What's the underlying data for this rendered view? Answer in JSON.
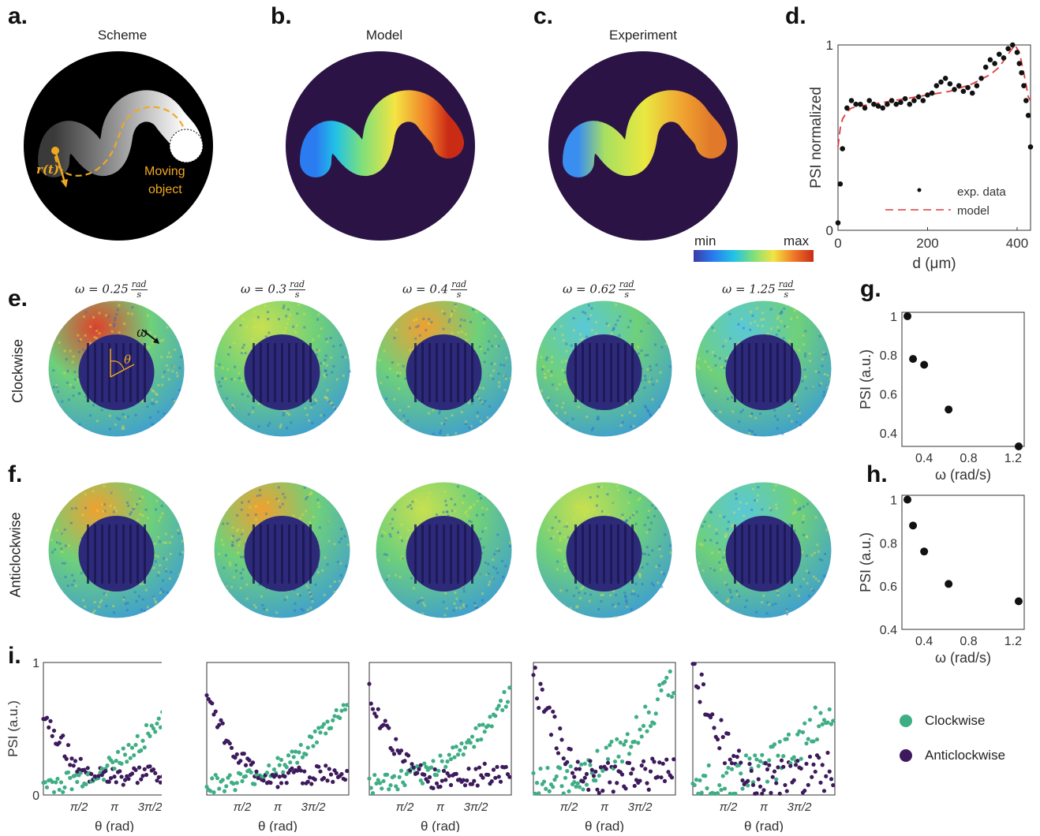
{
  "panel_letters": {
    "a": "a.",
    "b": "b.",
    "c": "c.",
    "d": "d.",
    "e": "e.",
    "f": "f.",
    "g": "g.",
    "h": "h.",
    "i": "i."
  },
  "titles": {
    "scheme": "Scheme",
    "model": "Model",
    "experiment": "Experiment"
  },
  "scheme": {
    "r_label": "r(t)",
    "moving_object": "Moving\nobject",
    "moving_line1": "Moving",
    "moving_line2": "object"
  },
  "colorbar": {
    "min": "min",
    "max": "max"
  },
  "omega_labels": [
    {
      "prefix": "ω = 0.25",
      "num": "rad",
      "den": "s"
    },
    {
      "prefix": "ω = 0.3",
      "num": "rad",
      "den": "s"
    },
    {
      "prefix": "ω = 0.4",
      "num": "rad",
      "den": "s"
    },
    {
      "prefix": "ω = 0.62",
      "num": "rad",
      "den": "s"
    },
    {
      "prefix": "ω = 1.25",
      "num": "rad",
      "den": "s"
    }
  ],
  "row_labels": {
    "clockwise": "Clockwise",
    "anticlockwise": "Anticlockwise"
  },
  "heatmap_annotations": {
    "omega": "ω",
    "theta": "θ"
  },
  "legend_i": {
    "clockwise": "Clockwise",
    "anticlockwise": "Anticlockwise",
    "clockwise_color": "#3fae85",
    "anticlockwise_color": "#3d1a5c"
  },
  "chart_data": [
    {
      "id": "d",
      "type": "scatter",
      "xlabel": "d (μm)",
      "ylabel": "PSI normalized",
      "xlim": [
        0,
        430
      ],
      "ylim": [
        0,
        1
      ],
      "xticks": [
        "0",
        "200",
        "400"
      ],
      "yticks": [
        "0",
        "1"
      ],
      "series": [
        {
          "name": "exp. data",
          "x": [
            0,
            5,
            10,
            20,
            30,
            40,
            50,
            60,
            70,
            80,
            90,
            100,
            110,
            120,
            130,
            140,
            150,
            160,
            170,
            180,
            190,
            200,
            210,
            220,
            230,
            240,
            250,
            260,
            270,
            280,
            290,
            300,
            310,
            320,
            330,
            340,
            350,
            360,
            370,
            380,
            390,
            400,
            405,
            410,
            415,
            420,
            425,
            430
          ],
          "y": [
            0.04,
            0.25,
            0.44,
            0.66,
            0.7,
            0.68,
            0.68,
            0.66,
            0.7,
            0.68,
            0.67,
            0.66,
            0.68,
            0.7,
            0.68,
            0.69,
            0.71,
            0.68,
            0.7,
            0.72,
            0.7,
            0.73,
            0.74,
            0.78,
            0.8,
            0.82,
            0.79,
            0.76,
            0.78,
            0.75,
            0.77,
            0.74,
            0.78,
            0.82,
            0.88,
            0.92,
            0.9,
            0.95,
            0.93,
            0.98,
            1.0,
            0.96,
            0.9,
            0.85,
            0.78,
            0.7,
            0.62,
            0.45
          ]
        },
        {
          "name": "model",
          "x": [
            0,
            5,
            10,
            20,
            30,
            50,
            100,
            150,
            200,
            250,
            300,
            340,
            360,
            380,
            395,
            405,
            415,
            425,
            430
          ],
          "y": [
            0.45,
            0.55,
            0.6,
            0.64,
            0.66,
            0.67,
            0.69,
            0.71,
            0.73,
            0.75,
            0.79,
            0.84,
            0.88,
            0.95,
            1.0,
            0.96,
            0.85,
            0.72,
            0.7
          ]
        }
      ],
      "legend": "bottom-right"
    },
    {
      "id": "g",
      "type": "scatter",
      "xlabel": "ω (rad/s)",
      "ylabel": "PSI (a.u.)",
      "xlim": [
        0.2,
        1.3
      ],
      "ylim": [
        0.33,
        1.02
      ],
      "xticks": [
        "0.4",
        "0.8",
        "1.2"
      ],
      "yticks": [
        "0.4",
        "0.6",
        "0.8",
        "1"
      ],
      "series": [
        {
          "x": [
            0.25,
            0.3,
            0.4,
            0.62,
            1.25
          ],
          "y": [
            1.0,
            0.78,
            0.75,
            0.52,
            0.33
          ]
        }
      ]
    },
    {
      "id": "h",
      "type": "scatter",
      "xlabel": "ω (rad/s)",
      "ylabel": "PSI (a.u.)",
      "xlim": [
        0.2,
        1.3
      ],
      "ylim": [
        0.4,
        1.02
      ],
      "xticks": [
        "0.4",
        "0.8",
        "1.2"
      ],
      "yticks": [
        "0.4",
        "0.6",
        "0.8",
        "1"
      ],
      "series": [
        {
          "x": [
            0.25,
            0.3,
            0.4,
            0.62,
            1.25
          ],
          "y": [
            1.0,
            0.88,
            0.76,
            0.61,
            0.53
          ]
        }
      ]
    },
    {
      "id": "i",
      "type": "scatter",
      "xlabel": "θ (rad)",
      "ylabel": "PSI (a.u.)",
      "xlim": [
        0,
        6.28
      ],
      "ylim": [
        0,
        1
      ],
      "xticks": [
        "π/2",
        "π",
        "3π/2"
      ],
      "yticks": [
        "0",
        "1"
      ],
      "subplots": [
        {
          "cw_amp": 0.75,
          "acw_amp": 0.55,
          "noise": 0.08
        },
        {
          "cw_amp": 0.62,
          "acw_amp": 0.68,
          "noise": 0.07
        },
        {
          "cw_amp": 0.7,
          "acw_amp": 0.7,
          "noise": 0.08
        },
        {
          "cw_amp": 0.82,
          "acw_amp": 0.82,
          "noise": 0.12
        },
        {
          "cw_amp": 0.6,
          "acw_amp": 0.92,
          "noise": 0.15
        }
      ]
    }
  ]
}
